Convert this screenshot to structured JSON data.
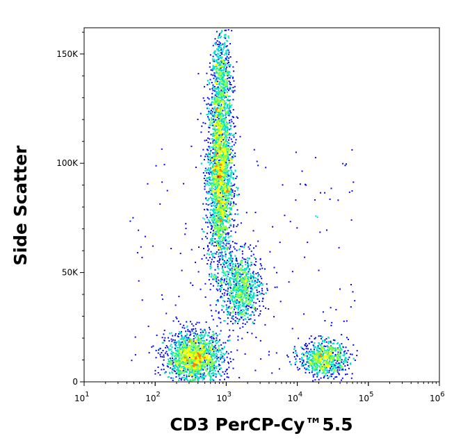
{
  "chart_data": {
    "type": "scatter",
    "plot_style": "density dot plot (flow cytometry)",
    "xlabel": "CD3 PerCP-Cy™5.5",
    "ylabel": "Side Scatter",
    "x_scale": "log",
    "xlim": [
      10,
      1000000
    ],
    "ylim": [
      0,
      162000
    ],
    "x_ticks": [
      {
        "value": 10,
        "base": "10",
        "exp": "1"
      },
      {
        "value": 100,
        "base": "10",
        "exp": "2"
      },
      {
        "value": 1000,
        "base": "10",
        "exp": "3"
      },
      {
        "value": 10000,
        "base": "10",
        "exp": "4"
      },
      {
        "value": 100000,
        "base": "10",
        "exp": "5"
      },
      {
        "value": 1000000,
        "base": "10",
        "exp": "6"
      }
    ],
    "y_ticks": [
      {
        "value": 0,
        "label": "0"
      },
      {
        "value": 50000,
        "label": "50K"
      },
      {
        "value": 100000,
        "label": "100K"
      },
      {
        "value": 150000,
        "label": "150K"
      }
    ],
    "color_scale": [
      "#0000ff",
      "#00a0ff",
      "#00e0c0",
      "#80ff40",
      "#ffff00",
      "#ff8000",
      "#ff0000"
    ],
    "populations": [
      {
        "x_center": 800,
        "y_center": 95000,
        "x_spread_log": 0.09,
        "y_spread": 22000,
        "n": 2600
      },
      {
        "x_center": 850,
        "y_center": 140000,
        "x_spread_log": 0.07,
        "y_spread": 11000,
        "n": 500
      },
      {
        "x_center": 350,
        "y_center": 11000,
        "x_spread_log": 0.2,
        "y_spread": 6000,
        "n": 1700
      },
      {
        "x_center": 1600,
        "y_center": 43000,
        "x_spread_log": 0.14,
        "y_spread": 8000,
        "n": 900
      },
      {
        "x_center": 23000,
        "y_center": 11000,
        "x_spread_log": 0.17,
        "y_spread": 4000,
        "n": 800
      }
    ]
  }
}
